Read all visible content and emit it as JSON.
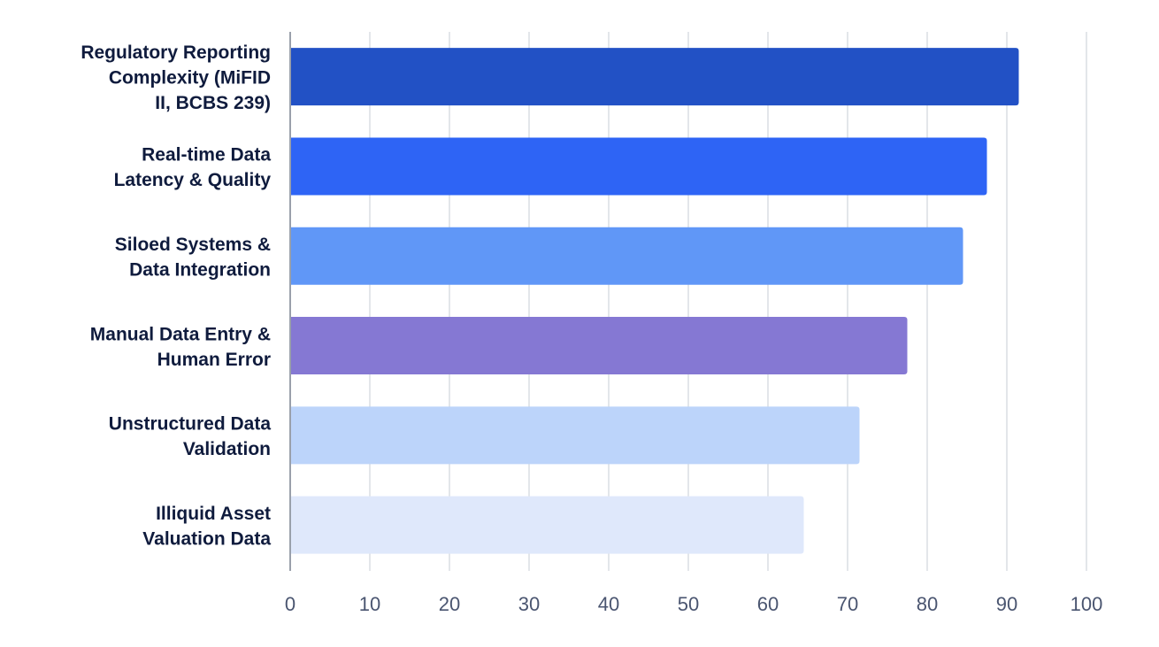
{
  "chart_data": {
    "type": "bar",
    "orientation": "horizontal",
    "categories": [
      "Regulatory Reporting Complexity (MiFID II, BCBS 239)",
      "Real-time Data Latency & Quality",
      "Siloed Systems & Data Integration",
      "Manual Data Entry & Human Error",
      "Unstructured Data Validation",
      "Illiquid Asset Valuation Data"
    ],
    "category_label_lines": [
      [
        "Regulatory Reporting",
        "Complexity (MiFID",
        "II, BCBS 239)"
      ],
      [
        "Real-time Data",
        "Latency & Quality"
      ],
      [
        "Siloed Systems &",
        "Data Integration"
      ],
      [
        "Manual Data Entry &",
        "Human Error"
      ],
      [
        "Unstructured Data",
        "Validation"
      ],
      [
        "Illiquid Asset",
        "Valuation Data"
      ]
    ],
    "values": [
      91.5,
      87.5,
      84.5,
      77.5,
      71.5,
      64.5
    ],
    "bar_colors": [
      "#2251c5",
      "#2e64f5",
      "#6097f7",
      "#8578d3",
      "#bcd4fa",
      "#dfe8fb"
    ],
    "xlim": [
      0,
      100
    ],
    "xticks": [
      "0",
      "10",
      "20",
      "30",
      "40",
      "50",
      "60",
      "70",
      "80",
      "90",
      "100"
    ],
    "title": "",
    "xlabel": "",
    "ylabel": "",
    "grid": "vertical",
    "legend": "none"
  }
}
